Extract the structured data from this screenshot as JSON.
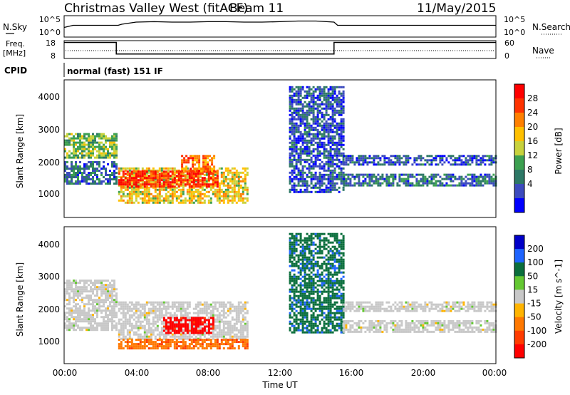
{
  "header": {
    "title": "Christmas Valley West (fitACF)",
    "beam": "Beam 11",
    "date": "11/May/2015"
  },
  "nsky_panel": {
    "label": "N.Sky",
    "left_ticks": [
      "10^5",
      "10^0"
    ],
    "right_label": "N.Search",
    "right_ticks": [
      "10^5",
      "10^0"
    ]
  },
  "freq_panel": {
    "label_line1": "Freq.",
    "label_line2": "[MHz]",
    "left_ticks": [
      "18",
      "8"
    ],
    "right_label": "Nave",
    "right_ticks": [
      "60",
      "0"
    ]
  },
  "cpid": {
    "label": "CPID",
    "value": "normal (fast) 151 IF"
  },
  "axes": {
    "ylabel": "Slant Range [km]",
    "yticks": [
      "4000",
      "3000",
      "2000",
      "1000"
    ],
    "xticks": [
      "00:00",
      "04:00",
      "08:00",
      "12:00",
      "16:00",
      "20:00",
      "00:00"
    ],
    "xlabel": "Time UT"
  },
  "power_colorbar": {
    "label": "Power [dB]",
    "ticks": [
      "28",
      "24",
      "20",
      "16",
      "12",
      "8",
      "4"
    ],
    "colors": [
      "#ff0000",
      "#ff3300",
      "#ff8000",
      "#ffc000",
      "#c8d23c",
      "#3ca050",
      "#2d7866",
      "#3c4bbe",
      "#0000ff"
    ]
  },
  "velocity_colorbar": {
    "label": "Velocity [m s^-1]",
    "ticks": [
      "200",
      "100",
      "50",
      "15",
      "-15",
      "-50",
      "-100",
      "-200"
    ],
    "colors": [
      "#0000c8",
      "#1e64ff",
      "#0a6e3c",
      "#64c832",
      "#c8c8c8",
      "#ffb400",
      "#ff7800",
      "#ff3c00",
      "#ff0000"
    ]
  },
  "chart_data": [
    {
      "type": "line",
      "panel": "N.Sky",
      "x_unit": "hours UT",
      "xlim": [
        0,
        24
      ],
      "x": [
        0,
        0.5,
        1,
        2,
        3,
        3.2,
        4,
        5,
        6,
        7,
        8,
        9,
        10,
        11,
        12,
        13,
        14,
        15,
        15.2,
        16,
        18,
        20,
        22,
        24
      ],
      "y": [
        0.45,
        0.55,
        0.55,
        0.55,
        0.55,
        0.6,
        0.7,
        0.72,
        0.7,
        0.7,
        0.72,
        0.72,
        0.7,
        0.7,
        0.72,
        0.75,
        0.75,
        0.7,
        0.55,
        0.55,
        0.55,
        0.55,
        0.55,
        0.55
      ]
    },
    {
      "type": "line",
      "panel": "Freq",
      "x_unit": "hours UT",
      "xlim": [
        0,
        24
      ],
      "ylim": [
        8,
        18
      ],
      "x": [
        0,
        2.9,
        2.9,
        15.0,
        15.0,
        24
      ],
      "y": [
        17,
        17,
        10.5,
        10.5,
        17,
        17
      ]
    },
    {
      "type": "heatmap",
      "panel": "Power",
      "x_unit": "hours UT",
      "xlim": [
        0,
        24
      ],
      "ylim": [
        200,
        4600
      ],
      "clim": [
        0,
        32
      ],
      "bands": [
        {
          "t0": 0,
          "t1": 2.9,
          "r0": 2100,
          "r1": 2900,
          "v": 14
        },
        {
          "t0": 0,
          "t1": 2.9,
          "r0": 1300,
          "r1": 2000,
          "v": 8
        },
        {
          "t0": 3.0,
          "t1": 10.2,
          "r0": 700,
          "r1": 1800,
          "v": 18
        },
        {
          "t0": 3.0,
          "t1": 8.5,
          "r0": 1200,
          "r1": 1700,
          "v": 28
        },
        {
          "t0": 6.5,
          "t1": 8.3,
          "r0": 1700,
          "r1": 2200,
          "v": 24
        },
        {
          "t0": 12.5,
          "t1": 15.5,
          "r0": 1000,
          "r1": 4400,
          "v": 6
        },
        {
          "t0": 15.5,
          "t1": 24,
          "r0": 1900,
          "r1": 2200,
          "v": 6
        },
        {
          "t0": 15.5,
          "t1": 24,
          "r0": 1200,
          "r1": 1600,
          "v": 8
        }
      ]
    },
    {
      "type": "heatmap",
      "panel": "Velocity",
      "x_unit": "hours UT",
      "xlim": [
        0,
        24
      ],
      "ylim": [
        200,
        4600
      ],
      "clim": [
        -250,
        250
      ],
      "bands": [
        {
          "t0": 0,
          "t1": 2.9,
          "r0": 1300,
          "r1": 2900,
          "v": 0
        },
        {
          "t0": 3.0,
          "t1": 10.2,
          "r0": 1000,
          "r1": 2200,
          "v": 0
        },
        {
          "t0": 3.0,
          "t1": 10.2,
          "r0": 700,
          "r1": 1000,
          "v": -120
        },
        {
          "t0": 5.5,
          "t1": 8.3,
          "r0": 1200,
          "r1": 1700,
          "v": -220
        },
        {
          "t0": 12.5,
          "t1": 15.5,
          "r0": 1200,
          "r1": 4400,
          "v": 120
        },
        {
          "t0": 15.5,
          "t1": 24,
          "r0": 1900,
          "r1": 2200,
          "v": 0
        },
        {
          "t0": 15.5,
          "t1": 24,
          "r0": 1200,
          "r1": 1600,
          "v": 0
        }
      ]
    }
  ]
}
